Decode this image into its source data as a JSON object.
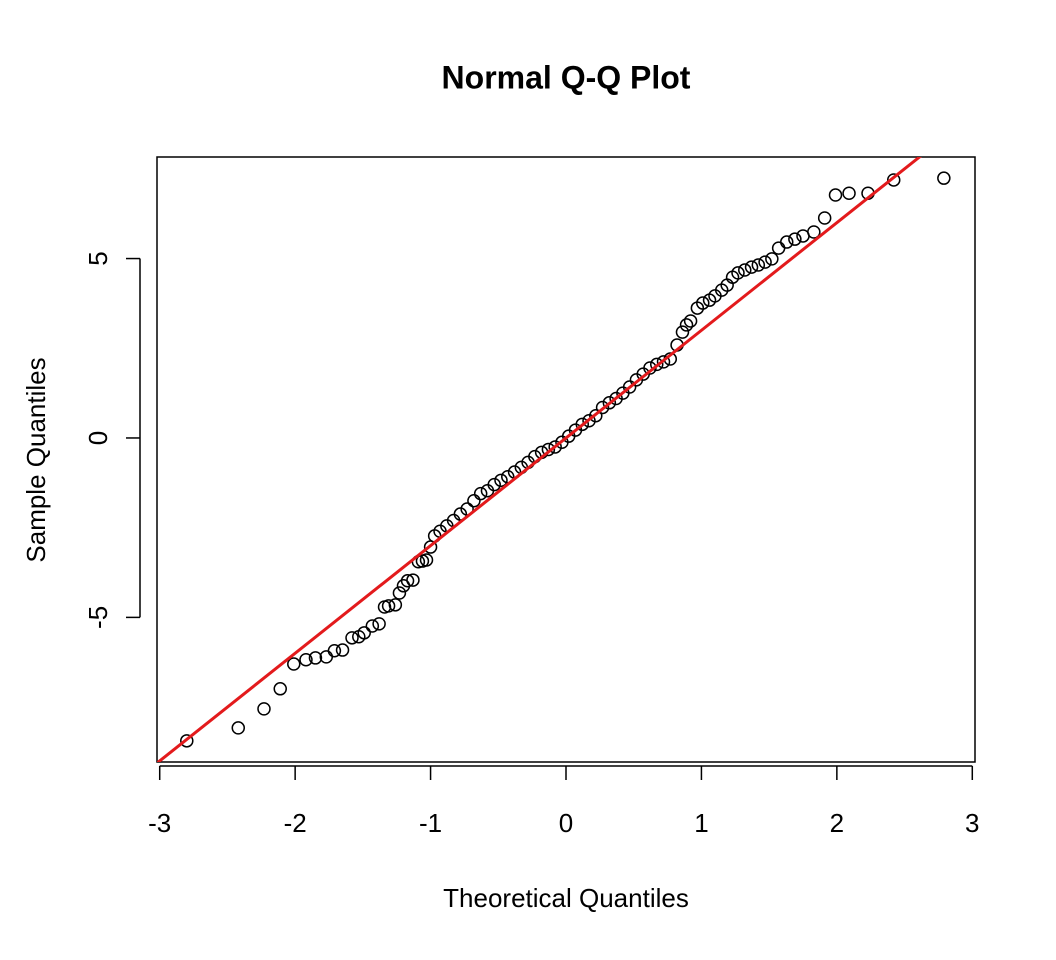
{
  "chart_data": {
    "type": "scatter",
    "title": "Normal Q-Q Plot",
    "x_label": "Theoretical Quantiles",
    "y_label": "Sample Quantiles",
    "x": [
      -2.8,
      -2.42,
      -2.23,
      -2.11,
      -2.01,
      -1.92,
      -1.85,
      -1.77,
      -1.71,
      -1.65,
      -1.58,
      -1.53,
      -1.49,
      -1.43,
      -1.38,
      -1.34,
      -1.31,
      -1.26,
      -1.23,
      -1.2,
      -1.17,
      -1.13,
      -1.09,
      -1.06,
      -1.03,
      -1.0,
      -0.97,
      -0.93,
      -0.88,
      -0.83,
      -0.78,
      -0.73,
      -0.68,
      -0.63,
      -0.58,
      -0.53,
      -0.48,
      -0.43,
      -0.38,
      -0.33,
      -0.28,
      -0.23,
      -0.18,
      -0.13,
      -0.08,
      -0.03,
      0.02,
      0.07,
      0.12,
      0.17,
      0.22,
      0.27,
      0.32,
      0.37,
      0.42,
      0.47,
      0.52,
      0.57,
      0.62,
      0.67,
      0.72,
      0.77,
      0.82,
      0.86,
      0.89,
      0.92,
      0.97,
      1.01,
      1.06,
      1.1,
      1.15,
      1.19,
      1.23,
      1.27,
      1.32,
      1.37,
      1.42,
      1.47,
      1.52,
      1.57,
      1.63,
      1.69,
      1.75,
      1.83,
      1.91,
      1.99,
      2.09,
      2.23,
      2.42,
      2.79
    ],
    "y": [
      -8.44,
      -8.08,
      -7.55,
      -6.99,
      -6.3,
      -6.18,
      -6.13,
      -6.1,
      -5.93,
      -5.91,
      -5.57,
      -5.54,
      -5.43,
      -5.24,
      -5.18,
      -4.71,
      -4.68,
      -4.65,
      -4.32,
      -4.12,
      -3.98,
      -3.96,
      -3.45,
      -3.43,
      -3.4,
      -3.04,
      -2.73,
      -2.6,
      -2.45,
      -2.3,
      -2.12,
      -1.98,
      -1.75,
      -1.55,
      -1.47,
      -1.3,
      -1.18,
      -1.08,
      -0.95,
      -0.82,
      -0.68,
      -0.52,
      -0.4,
      -0.32,
      -0.25,
      -0.12,
      0.05,
      0.22,
      0.38,
      0.48,
      0.62,
      0.85,
      0.98,
      1.1,
      1.25,
      1.42,
      1.62,
      1.78,
      1.95,
      2.05,
      2.12,
      2.2,
      2.59,
      2.95,
      3.15,
      3.26,
      3.62,
      3.76,
      3.84,
      3.96,
      4.12,
      4.26,
      4.48,
      4.6,
      4.68,
      4.76,
      4.82,
      4.9,
      4.99,
      5.29,
      5.46,
      5.54,
      5.63,
      5.74,
      6.13,
      6.77,
      6.82,
      6.82,
      7.19,
      7.24
    ],
    "color": "#000000",
    "reference_line": {
      "intercept": 0,
      "slope": 3,
      "color": "#e31a1c"
    },
    "xlim": [
      -3.02,
      3.02
    ],
    "ylim": [
      -9.03,
      7.83
    ],
    "xticks": [
      -3,
      -2,
      -1,
      0,
      1,
      2,
      3
    ],
    "yticks": [
      -5,
      0,
      5
    ]
  }
}
